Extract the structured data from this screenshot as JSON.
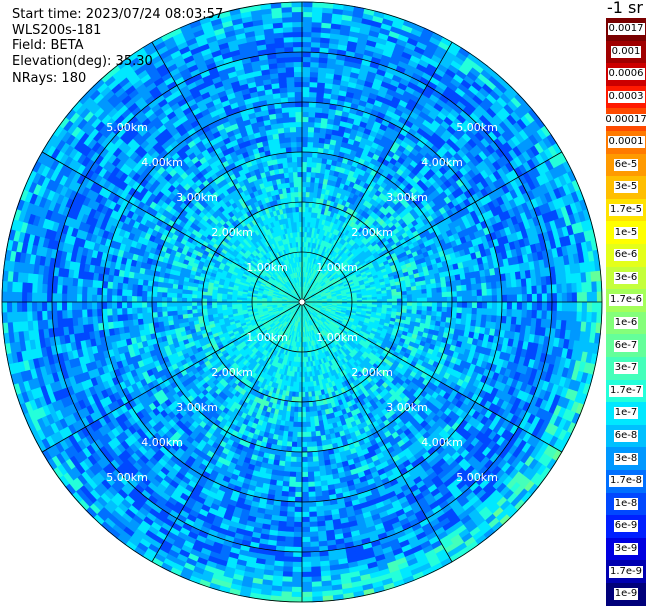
{
  "header": {
    "start_time": "Start time: 2023/07/24 08:03:57",
    "instrument": "WLS200s-181",
    "field": "Field: BETA",
    "elevation": "Elevation(deg): 35.30",
    "nrays": "NRays: 180"
  },
  "colorbar": {
    "unit_label": "-1 sr",
    "labels": [
      "0.0017",
      "0.001",
      "0.0006",
      "0.0003",
      "0.00017",
      "0.0001",
      "6e-5",
      "3e-5",
      "1.7e-5",
      "1e-5",
      "6e-6",
      "3e-6",
      "1.7e-6",
      "1e-6",
      "6e-7",
      "3e-7",
      "1.7e-7",
      "1e-7",
      "6e-8",
      "3e-8",
      "1.7e-8",
      "1e-8",
      "6e-9",
      "3e-9",
      "1.7e-9",
      "1e-9"
    ],
    "colors": [
      "#7a0000",
      "#a00000",
      "#cc0000",
      "#ff1a00",
      "#ff4a00",
      "#ff7a00",
      "#ff9a00",
      "#ffbe00",
      "#ffe200",
      "#ffff00",
      "#e4ff1a",
      "#c4ff3a",
      "#a4ff5a",
      "#84ff7a",
      "#64ff9a",
      "#44ffba",
      "#24ffda",
      "#00e8ff",
      "#00c0ff",
      "#0098ff",
      "#0070ff",
      "#0048ff",
      "#0020ff",
      "#0000e0",
      "#0000b0",
      "#00007a"
    ]
  },
  "chart_data": {
    "type": "heatmap",
    "projection": "polar-ppi",
    "range_rings_km": [
      1,
      2,
      3,
      4,
      5,
      6
    ],
    "ring_labels": [
      "1.00km",
      "2.00km",
      "3.00km",
      "4.00km",
      "5.00km"
    ],
    "spoke_angles_deg": [
      0,
      30,
      60,
      90,
      120,
      150,
      180,
      210,
      240,
      270,
      300,
      330
    ],
    "rays": 180,
    "max_range_km": 6.0
  }
}
